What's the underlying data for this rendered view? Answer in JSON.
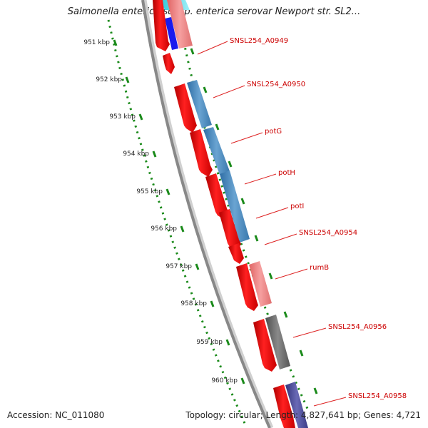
{
  "title": "Salmonella enterica subsp. enterica serovar Newport str. SL2...",
  "footer": {
    "accession": "Accession: NC_011080",
    "summary": "Topology: circular; Length: 4,827,641 bp; Genes: 4,721"
  },
  "scale": {
    "unit": "kbp",
    "ticks": [
      "951 kbp",
      "952 kbp",
      "953 kbp",
      "954 kbp",
      "955 kbp",
      "956 kbp",
      "957 kbp",
      "958 kbp",
      "959 kbp",
      "960 kbp"
    ]
  },
  "gene_labels": [
    "SNSL254_A0949",
    "SNSL254_A0950",
    "potG",
    "potH",
    "potI",
    "SNSL254_A0954",
    "rumB",
    "SNSL254_A0956",
    "SNSL254_A0958"
  ],
  "colors": {
    "background": "#ffffff",
    "backbone": "#8a8a8a",
    "tick_dots": "#118811",
    "cds": "#ee1111",
    "label_text": "#cc0000",
    "label_line": "#dd2222",
    "blue_feature": "#4a86bb",
    "pink_feature": "#ee8080",
    "gray_feature": "#6a6a6a",
    "purple_feature": "#4a4a9a"
  }
}
